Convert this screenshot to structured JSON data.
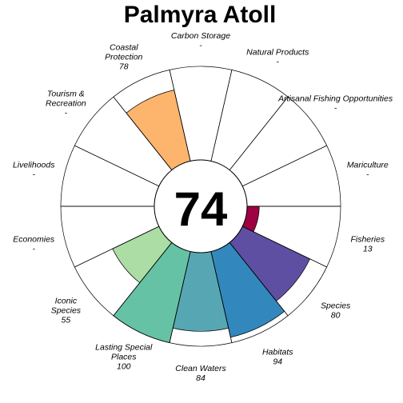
{
  "chart_data": {
    "type": "flower",
    "title": "Palmyra Atoll",
    "score": "74",
    "max_value": 100,
    "na_symbol": "-",
    "petals": [
      {
        "label": [
          "Fisheries"
        ],
        "value": 13,
        "color": "#9e0142"
      },
      {
        "label": [
          "Species"
        ],
        "value": 80,
        "color": "#5e4fa2"
      },
      {
        "label": [
          "Habitats"
        ],
        "value": 94,
        "color": "#3288bd"
      },
      {
        "label": [
          "Clean Waters"
        ],
        "value": 84,
        "color": "#56a7b3"
      },
      {
        "label": [
          "Lasting Special",
          "Places"
        ],
        "value": 100,
        "color": "#66c2a5"
      },
      {
        "label": [
          "Iconic",
          "Species"
        ],
        "value": 55,
        "color": "#abdda4"
      },
      {
        "label": [
          "Economies"
        ],
        "value": null,
        "color": "#e6f598"
      },
      {
        "label": [
          "Livelihoods"
        ],
        "value": null,
        "color": "#fee08b"
      },
      {
        "label": [
          "Tourism &",
          "Recreation"
        ],
        "value": null,
        "color": "#fdae61"
      },
      {
        "label": [
          "Coastal",
          "Protection"
        ],
        "value": 78,
        "color": "#fdb46c"
      },
      {
        "label": [
          "Carbon Storage"
        ],
        "value": null,
        "color": "#d53e4f"
      },
      {
        "label": [
          "Natural Products"
        ],
        "value": null,
        "color": "#f46d43"
      },
      {
        "label": [
          "Artisanal Fishing Opportunities"
        ],
        "value": null,
        "color": "#fdae61"
      },
      {
        "label": [
          "Mariculture"
        ],
        "value": null,
        "color": "#fee08b"
      }
    ]
  }
}
